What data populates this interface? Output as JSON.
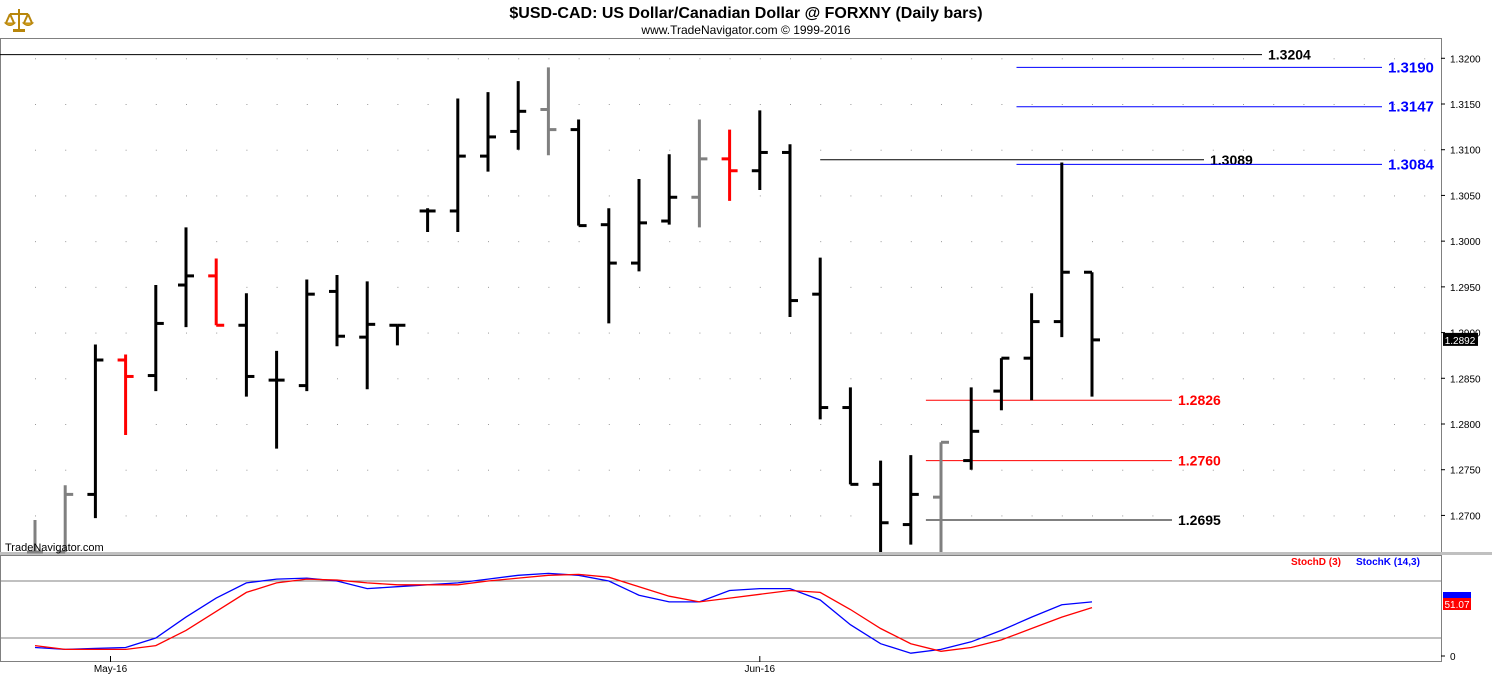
{
  "header": {
    "title": "$USD-CAD:  US Dollar/Canadian Dollar @ FORXNY  (Daily bars)",
    "subtitle": "www.TradeNavigator.com © 1999-2016"
  },
  "watermark": "TradeNavigator.com",
  "chart_data": [
    {
      "type": "ohlc",
      "name": "price",
      "ylim": [
        1.266,
        1.322
      ],
      "yticks": [
        "1.3200",
        "1.3150",
        "1.3100",
        "1.3050",
        "1.3000",
        "1.2950",
        "1.2900",
        "1.2850",
        "1.2800",
        "1.2750",
        "1.2700"
      ],
      "last_price_label": "1.2892",
      "last_price": 1.2892,
      "bars": [
        {
          "o": 1.266,
          "h": 1.2695,
          "l": 1.266,
          "c": 1.266,
          "color": "gray"
        },
        {
          "o": 1.266,
          "h": 1.2733,
          "l": 1.266,
          "c": 1.2723,
          "color": "gray"
        },
        {
          "o": 1.2723,
          "h": 1.2887,
          "l": 1.2697,
          "c": 1.287,
          "color": "black"
        },
        {
          "o": 1.287,
          "h": 1.2876,
          "l": 1.2788,
          "c": 1.2852,
          "color": "red"
        },
        {
          "o": 1.2853,
          "h": 1.2952,
          "l": 1.2836,
          "c": 1.291,
          "color": "black"
        },
        {
          "o": 1.2952,
          "h": 1.3015,
          "l": 1.2906,
          "c": 1.2962,
          "color": "black"
        },
        {
          "o": 1.2962,
          "h": 1.2981,
          "l": 1.2908,
          "c": 1.2908,
          "color": "red"
        },
        {
          "o": 1.2908,
          "h": 1.2943,
          "l": 1.283,
          "c": 1.2852,
          "color": "black"
        },
        {
          "o": 1.2848,
          "h": 1.288,
          "l": 1.2773,
          "c": 1.2848,
          "color": "black"
        },
        {
          "o": 1.2842,
          "h": 1.2958,
          "l": 1.2836,
          "c": 1.2942,
          "color": "black"
        },
        {
          "o": 1.2945,
          "h": 1.2963,
          "l": 1.2885,
          "c": 1.2896,
          "color": "black"
        },
        {
          "o": 1.2895,
          "h": 1.2956,
          "l": 1.2838,
          "c": 1.2909,
          "color": "black"
        },
        {
          "o": 1.2908,
          "h": 1.2908,
          "l": 1.2886,
          "c": 1.2908,
          "color": "black"
        },
        {
          "o": 1.3033,
          "h": 1.3036,
          "l": 1.301,
          "c": 1.3033,
          "color": "black"
        },
        {
          "o": 1.3033,
          "h": 1.3156,
          "l": 1.301,
          "c": 1.3093,
          "color": "black"
        },
        {
          "o": 1.3093,
          "h": 1.3163,
          "l": 1.3076,
          "c": 1.3114,
          "color": "black"
        },
        {
          "o": 1.312,
          "h": 1.3175,
          "l": 1.31,
          "c": 1.3142,
          "color": "black"
        },
        {
          "o": 1.3144,
          "h": 1.319,
          "l": 1.3094,
          "c": 1.3122,
          "color": "gray"
        },
        {
          "o": 1.3122,
          "h": 1.3133,
          "l": 1.3017,
          "c": 1.3017,
          "color": "black"
        },
        {
          "o": 1.3018,
          "h": 1.3036,
          "l": 1.291,
          "c": 1.2976,
          "color": "black"
        },
        {
          "o": 1.2976,
          "h": 1.3068,
          "l": 1.2967,
          "c": 1.302,
          "color": "black"
        },
        {
          "o": 1.3022,
          "h": 1.3095,
          "l": 1.3018,
          "c": 1.3048,
          "color": "black"
        },
        {
          "o": 1.3048,
          "h": 1.3133,
          "l": 1.3015,
          "c": 1.309,
          "color": "gray"
        },
        {
          "o": 1.309,
          "h": 1.3122,
          "l": 1.3044,
          "c": 1.3077,
          "color": "red"
        },
        {
          "o": 1.3077,
          "h": 1.3143,
          "l": 1.3056,
          "c": 1.3097,
          "color": "black"
        },
        {
          "o": 1.3097,
          "h": 1.3106,
          "l": 1.2917,
          "c": 1.2935,
          "color": "black"
        },
        {
          "o": 1.2942,
          "h": 1.2982,
          "l": 1.2805,
          "c": 1.2818,
          "color": "black"
        },
        {
          "o": 1.2818,
          "h": 1.284,
          "l": 1.2734,
          "c": 1.2734,
          "color": "black"
        },
        {
          "o": 1.2734,
          "h": 1.276,
          "l": 1.266,
          "c": 1.2692,
          "color": "black"
        },
        {
          "o": 1.269,
          "h": 1.2766,
          "l": 1.2668,
          "c": 1.2723,
          "color": "black"
        },
        {
          "o": 1.272,
          "h": 1.278,
          "l": 1.266,
          "c": 1.278,
          "color": "gray"
        },
        {
          "o": 1.276,
          "h": 1.284,
          "l": 1.275,
          "c": 1.2792,
          "color": "black"
        },
        {
          "o": 1.2836,
          "h": 1.2872,
          "l": 1.2815,
          "c": 1.2872,
          "color": "black"
        },
        {
          "o": 1.2872,
          "h": 1.2943,
          "l": 1.2826,
          "c": 1.2912,
          "color": "black"
        },
        {
          "o": 1.2912,
          "h": 1.3086,
          "l": 1.2895,
          "c": 1.2966,
          "color": "black"
        },
        {
          "o": 1.2966,
          "h": 1.2966,
          "l": 1.283,
          "c": 1.2892,
          "color": "black"
        }
      ],
      "levels": [
        {
          "value": 1.3204,
          "label": "1.3204",
          "color": "#000000",
          "x_start_bar": -1,
          "label_size": 14
        },
        {
          "value": 1.319,
          "label": "1.3190",
          "color": "#0000ff",
          "x_start_bar": 32.5,
          "label_size": 15
        },
        {
          "value": 1.3147,
          "label": "1.3147",
          "color": "#0000ff",
          "x_start_bar": 32.5,
          "label_size": 15
        },
        {
          "value": 1.3089,
          "label": "1.3089",
          "color": "#000000",
          "x_start_bar": 26,
          "label_size": 14
        },
        {
          "value": 1.3084,
          "label": "1.3084",
          "color": "#0000ff",
          "x_start_bar": 32.5,
          "label_size": 15
        },
        {
          "value": 1.2826,
          "label": "1.2826",
          "color": "#ff0000",
          "x_start_bar": 29.5,
          "label_size": 14
        },
        {
          "value": 1.276,
          "label": "1.2760",
          "color": "#ff0000",
          "x_start_bar": 29.5,
          "label_size": 14
        },
        {
          "value": 1.2695,
          "label": "1.2695",
          "color": "#000000",
          "x_start_bar": 29.5,
          "label_size": 14
        }
      ]
    },
    {
      "type": "line",
      "name": "stochastic",
      "ylim": [
        0,
        100
      ],
      "ytick_label": "0",
      "last_value_label": "51.07",
      "legend": [
        {
          "label": "StochD (3)",
          "color": "#ff0000"
        },
        {
          "label": "StochK (14,3)",
          "color": "#0000ff"
        }
      ],
      "series": [
        {
          "name": "StochK (14,3)",
          "color": "#0000ff",
          "values": [
            10,
            8,
            9,
            10,
            20,
            42,
            62,
            78,
            82,
            83,
            80,
            72,
            74,
            76,
            78,
            82,
            86,
            88,
            86,
            80,
            65,
            58,
            58,
            70,
            72,
            72,
            60,
            34,
            14,
            4,
            8,
            16,
            28,
            42,
            55,
            58
          ]
        },
        {
          "name": "StochD (3)",
          "color": "#ff0000",
          "values": [
            12,
            8,
            8,
            8,
            12,
            28,
            48,
            68,
            78,
            82,
            81,
            78,
            76,
            76,
            76,
            80,
            83,
            86,
            87,
            84,
            74,
            64,
            58,
            62,
            66,
            70,
            68,
            50,
            30,
            14,
            6,
            10,
            18,
            30,
            42,
            52
          ]
        }
      ],
      "dashed_levels": [
        80,
        20
      ]
    }
  ],
  "x_axis": {
    "labels": [
      {
        "text": "May-16",
        "bar": 2.5
      },
      {
        "text": "Jun-16",
        "bar": 24
      }
    ]
  }
}
